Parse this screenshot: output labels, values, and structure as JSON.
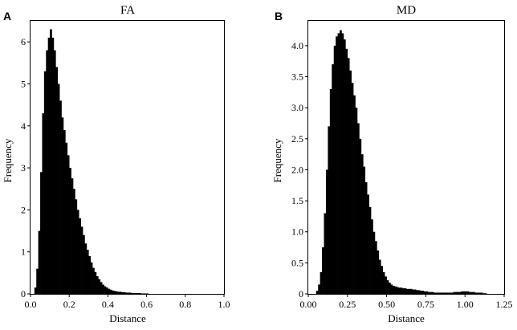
{
  "chart_data": [
    {
      "type": "bar",
      "panel_label": "A",
      "title": "FA",
      "xlabel": "Distance",
      "ylabel": "Frequency",
      "xlim": [
        0.0,
        1.0
      ],
      "ylim": [
        0,
        6.5
      ],
      "xticks": [
        "0.0",
        "0.2",
        "0.4",
        "0.6",
        "0.8",
        "1.0"
      ],
      "yticks": [
        "0",
        "1",
        "2",
        "3",
        "4",
        "5",
        "6"
      ],
      "bar_color": "#000000",
      "grid": false,
      "bin_width": 0.01,
      "x": [
        0.02,
        0.03,
        0.04,
        0.05,
        0.06,
        0.07,
        0.08,
        0.09,
        0.1,
        0.11,
        0.12,
        0.13,
        0.14,
        0.15,
        0.16,
        0.17,
        0.18,
        0.19,
        0.2,
        0.21,
        0.22,
        0.23,
        0.24,
        0.25,
        0.26,
        0.27,
        0.28,
        0.29,
        0.3,
        0.31,
        0.32,
        0.33,
        0.34,
        0.35,
        0.36,
        0.37,
        0.38,
        0.39,
        0.4,
        0.41,
        0.42,
        0.43,
        0.44,
        0.45,
        0.46,
        0.47,
        0.48,
        0.49,
        0.5,
        0.51,
        0.52,
        0.53,
        0.54,
        0.55,
        0.56,
        0.57,
        0.58,
        0.59,
        0.6
      ],
      "values": [
        0.15,
        0.6,
        1.5,
        2.9,
        4.3,
        5.3,
        5.8,
        6.1,
        6.3,
        6.1,
        5.8,
        5.4,
        5.0,
        4.6,
        4.2,
        3.9,
        3.6,
        3.3,
        3.0,
        2.75,
        2.5,
        2.25,
        2.0,
        1.8,
        1.6,
        1.4,
        1.2,
        1.05,
        0.9,
        0.75,
        0.62,
        0.52,
        0.42,
        0.35,
        0.28,
        0.22,
        0.18,
        0.15,
        0.12,
        0.1,
        0.08,
        0.07,
        0.06,
        0.05,
        0.05,
        0.04,
        0.04,
        0.03,
        0.03,
        0.03,
        0.02,
        0.02,
        0.02,
        0.02,
        0.02,
        0.01,
        0.01,
        0.01,
        0.01
      ]
    },
    {
      "type": "bar",
      "panel_label": "B",
      "title": "MD",
      "xlabel": "Distance",
      "ylabel": "Frequency",
      "xlim": [
        0.0,
        1.25
      ],
      "ylim": [
        0,
        4.4
      ],
      "xticks": [
        "0.00",
        "0.25",
        "0.50",
        "0.75",
        "1.00",
        "1.25"
      ],
      "yticks": [
        "0",
        "0.5",
        "1.0",
        "1.5",
        "2.0",
        "2.5",
        "3.0",
        "3.5",
        "4.0"
      ],
      "bar_color": "#000000",
      "grid": false,
      "bin_width": 0.0125,
      "x": [
        0.05,
        0.0625,
        0.075,
        0.0875,
        0.1,
        0.1125,
        0.125,
        0.1375,
        0.15,
        0.1625,
        0.175,
        0.1875,
        0.2,
        0.2125,
        0.225,
        0.2375,
        0.25,
        0.2625,
        0.275,
        0.2875,
        0.3,
        0.3125,
        0.325,
        0.3375,
        0.35,
        0.3625,
        0.375,
        0.3875,
        0.4,
        0.4125,
        0.425,
        0.4375,
        0.45,
        0.4625,
        0.475,
        0.4875,
        0.5,
        0.5125,
        0.525,
        0.5375,
        0.55,
        0.5625,
        0.575,
        0.5875,
        0.6,
        0.6125,
        0.625,
        0.6375,
        0.65,
        0.6625,
        0.675,
        0.6875,
        0.7,
        0.7125,
        0.725,
        0.7375,
        0.75,
        0.7625,
        0.775,
        0.7875,
        0.8,
        0.8125,
        0.825,
        0.8375,
        0.85,
        0.8625,
        0.875,
        0.8875,
        0.9,
        0.9125,
        0.925,
        0.9375,
        0.95,
        0.9625,
        0.975,
        0.9875,
        1.0,
        1.0125,
        1.025,
        1.0375,
        1.05,
        1.0625,
        1.075,
        1.0875,
        1.1,
        1.1125,
        1.125
      ],
      "values": [
        0.05,
        0.15,
        0.35,
        0.75,
        1.3,
        2.0,
        2.7,
        3.3,
        3.7,
        4.0,
        4.15,
        4.2,
        4.25,
        4.2,
        4.1,
        3.95,
        3.8,
        3.6,
        3.4,
        3.2,
        3.0,
        2.75,
        2.5,
        2.25,
        2.05,
        1.8,
        1.6,
        1.4,
        1.2,
        1.0,
        0.85,
        0.7,
        0.55,
        0.45,
        0.35,
        0.28,
        0.22,
        0.18,
        0.15,
        0.13,
        0.12,
        0.11,
        0.1,
        0.1,
        0.09,
        0.09,
        0.08,
        0.08,
        0.08,
        0.07,
        0.07,
        0.06,
        0.06,
        0.05,
        0.05,
        0.04,
        0.04,
        0.03,
        0.03,
        0.03,
        0.02,
        0.02,
        0.02,
        0.02,
        0.02,
        0.02,
        0.02,
        0.02,
        0.02,
        0.02,
        0.03,
        0.03,
        0.03,
        0.03,
        0.04,
        0.04,
        0.04,
        0.04,
        0.03,
        0.03,
        0.03,
        0.02,
        0.02,
        0.02,
        0.02,
        0.01,
        0.01
      ]
    }
  ]
}
